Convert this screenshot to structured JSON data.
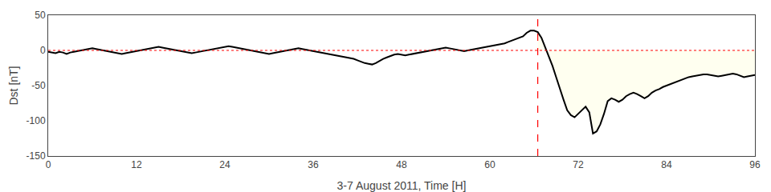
{
  "chart_data": {
    "type": "line",
    "xlabel": "3-7 August 2011, Time [H]",
    "ylabel": "Dst [nT]",
    "xlim": [
      0,
      96
    ],
    "ylim": [
      -150,
      50
    ],
    "xticks": [
      0,
      12,
      24,
      36,
      48,
      60,
      72,
      84,
      96
    ],
    "yticks": [
      -150,
      -100,
      -50,
      0,
      50
    ],
    "grid": false,
    "x": [
      0,
      0.5,
      1,
      1.5,
      2,
      2.5,
      3,
      3.5,
      4,
      4.5,
      5,
      5.5,
      6,
      6.5,
      7,
      7.5,
      8,
      8.5,
      9,
      9.5,
      10,
      10.5,
      11,
      11.5,
      12,
      12.5,
      13,
      13.5,
      14,
      14.5,
      15,
      15.5,
      16,
      16.5,
      17,
      17.5,
      18,
      18.5,
      19,
      19.5,
      20,
      20.5,
      21,
      21.5,
      22,
      22.5,
      23,
      23.5,
      24,
      24.5,
      25,
      25.5,
      26,
      26.5,
      27,
      27.5,
      28,
      28.5,
      29,
      29.5,
      30,
      30.5,
      31,
      31.5,
      32,
      32.5,
      33,
      33.5,
      34,
      34.5,
      35,
      35.5,
      36,
      36.5,
      37,
      37.5,
      38,
      38.5,
      39,
      39.5,
      40,
      40.5,
      41,
      41.5,
      42,
      42.5,
      43,
      43.5,
      44,
      44.5,
      45,
      45.5,
      46,
      46.5,
      47,
      47.5,
      48,
      48.5,
      49,
      49.5,
      50,
      50.5,
      51,
      51.5,
      52,
      52.5,
      53,
      53.5,
      54,
      54.5,
      55,
      55.5,
      56,
      56.5,
      57,
      57.5,
      58,
      58.5,
      59,
      59.5,
      60,
      60.5,
      61,
      61.5,
      62,
      62.5,
      63,
      63.5,
      64,
      64.5,
      65,
      65.5,
      66,
      66.5,
      67,
      67.5,
      68,
      68.5,
      69,
      69.5,
      70,
      70.5,
      71,
      71.5,
      72,
      72.5,
      73,
      73.5,
      74,
      74.5,
      75,
      75.5,
      76,
      76.5,
      77,
      77.5,
      78,
      78.5,
      79,
      79.5,
      80,
      80.5,
      81,
      81.5,
      82,
      82.5,
      83,
      83.5,
      84,
      84.5,
      85,
      85.5,
      86,
      86.5,
      87,
      87.5,
      88,
      88.5,
      89,
      89.5,
      90,
      90.5,
      91,
      91.5,
      92,
      92.5,
      93,
      93.5,
      94,
      94.5,
      95,
      95.5,
      96
    ],
    "series": [
      {
        "color": "#000000",
        "values": [
          -2,
          -3,
          -4,
          -2,
          -3,
          -5,
          -3,
          -2,
          -1,
          0,
          1,
          2,
          3,
          2,
          1,
          0,
          -1,
          -2,
          -3,
          -4,
          -5,
          -4,
          -3,
          -2,
          -1,
          0,
          1,
          2,
          3,
          4,
          5,
          4,
          3,
          2,
          1,
          0,
          -1,
          -2,
          -3,
          -4,
          -3,
          -2,
          -1,
          0,
          1,
          2,
          3,
          4,
          5,
          6,
          5,
          4,
          3,
          2,
          1,
          0,
          -1,
          -2,
          -3,
          -4,
          -5,
          -4,
          -3,
          -2,
          -1,
          0,
          1,
          2,
          3,
          2,
          1,
          0,
          -1,
          -2,
          -3,
          -4,
          -5,
          -6,
          -7,
          -8,
          -9,
          -10,
          -11,
          -12,
          -14,
          -16,
          -18,
          -19,
          -20,
          -18,
          -15,
          -12,
          -10,
          -8,
          -6,
          -5,
          -6,
          -7,
          -6,
          -5,
          -4,
          -3,
          -2,
          -1,
          0,
          1,
          2,
          3,
          4,
          3,
          2,
          1,
          0,
          -1,
          0,
          1,
          2,
          3,
          4,
          5,
          6,
          7,
          8,
          9,
          10,
          12,
          14,
          16,
          18,
          20,
          25,
          28,
          28,
          26,
          18,
          5,
          -8,
          -22,
          -38,
          -55,
          -70,
          -85,
          -92,
          -95,
          -90,
          -85,
          -80,
          -88,
          -118,
          -115,
          -105,
          -90,
          -72,
          -68,
          -70,
          -73,
          -70,
          -65,
          -62,
          -60,
          -62,
          -65,
          -68,
          -65,
          -60,
          -57,
          -55,
          -52,
          -50,
          -48,
          -46,
          -44,
          -42,
          -40,
          -38,
          -37,
          -36,
          -35,
          -34,
          -34,
          -35,
          -36,
          -37,
          -36,
          -35,
          -34,
          -33,
          -34,
          -36,
          -38,
          -37,
          -36,
          -35
        ]
      }
    ],
    "vline": {
      "x": 66.5,
      "color": "#ff0000",
      "line_style": "dashed"
    },
    "hline": {
      "y": 0,
      "color": "#ff0000",
      "line_style": "dotted"
    },
    "fill": {
      "from_x": 66.5,
      "to_y": 0,
      "color": "#fffff0"
    }
  }
}
